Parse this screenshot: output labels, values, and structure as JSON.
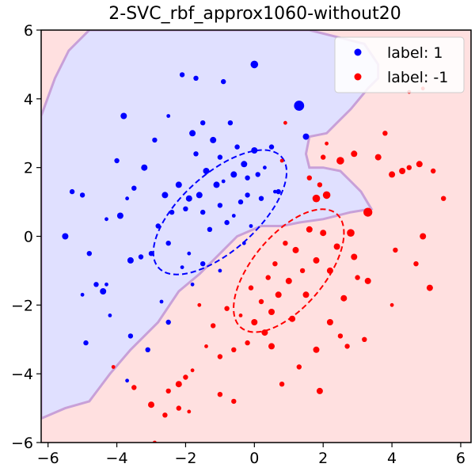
{
  "chart_data": {
    "type": "scatter",
    "title": "2-SVC_rbf_approx1060-without20",
    "xlabel": "",
    "ylabel": "",
    "xlim": [
      -6.2,
      6.3
    ],
    "ylim": [
      -6,
      6
    ],
    "x_ticks": [
      -6,
      -4,
      -2,
      0,
      2,
      4,
      6
    ],
    "y_ticks": [
      -6,
      -4,
      -2,
      0,
      2,
      4,
      6
    ],
    "grid": false,
    "legend_position": "top-right",
    "colors": {
      "positive": "#0000ff",
      "negative": "#ff0000",
      "region_positive": "#e0e0ff",
      "region_negative": "#ffe0e0",
      "boundary": "#c8a0d8"
    },
    "legend": [
      {
        "label": "label: 1",
        "color": "#0000ff"
      },
      {
        "label": "label: -1",
        "color": "#ff0000"
      }
    ],
    "decision_boundary": [
      [
        -6.2,
        -5.3
      ],
      [
        -5.5,
        -5.0
      ],
      [
        -4.8,
        -4.8
      ],
      [
        -4.2,
        -4.0
      ],
      [
        -3.6,
        -3.3
      ],
      [
        -2.8,
        -2.5
      ],
      [
        -2.2,
        -1.6
      ],
      [
        -1.6,
        -1.1
      ],
      [
        -1.0,
        -0.5
      ],
      [
        -0.5,
        0.0
      ],
      [
        0.2,
        0.3
      ],
      [
        0.8,
        0.3
      ],
      [
        1.3,
        0.4
      ],
      [
        2.0,
        0.5
      ],
      [
        2.8,
        0.7
      ],
      [
        3.4,
        0.8
      ],
      [
        3.1,
        1.3
      ],
      [
        2.8,
        1.6
      ],
      [
        2.5,
        1.9
      ],
      [
        2.0,
        2.0
      ],
      [
        1.6,
        2.0
      ],
      [
        1.5,
        2.4
      ],
      [
        1.6,
        2.9
      ],
      [
        2.1,
        3.0
      ],
      [
        2.4,
        3.3
      ],
      [
        2.8,
        3.7
      ],
      [
        3.3,
        4.3
      ],
      [
        3.6,
        4.6
      ],
      [
        3.6,
        5.0
      ],
      [
        3.2,
        5.6
      ],
      [
        2.4,
        5.8
      ],
      [
        1.6,
        6.0
      ],
      [
        -4.8,
        6.0
      ],
      [
        -5.4,
        5.4
      ],
      [
        -5.8,
        4.6
      ],
      [
        -6.2,
        3.5
      ]
    ],
    "ellipses": [
      {
        "series": "label: 1",
        "cx": -1.0,
        "cy": 0.7,
        "rx": 3.9,
        "ry": 1.8,
        "angle_deg": 42
      },
      {
        "series": "label: -1",
        "cx": 1.0,
        "cy": -1.0,
        "rx": 3.5,
        "ry": 1.7,
        "angle_deg": 50
      }
    ],
    "series": [
      {
        "name": "label: 1",
        "color": "#0000ff",
        "points": [
          [
            -5.5,
            0.0,
            5
          ],
          [
            -5.3,
            1.3,
            4
          ],
          [
            -5.0,
            1.2,
            4
          ],
          [
            -5.0,
            -1.7,
            3
          ],
          [
            -4.8,
            -0.5,
            4
          ],
          [
            -4.6,
            -1.4,
            4
          ],
          [
            -4.4,
            -1.6,
            5
          ],
          [
            -4.3,
            -1.4,
            3
          ],
          [
            -4.3,
            0.5,
            3
          ],
          [
            -4.0,
            2.2,
            4
          ],
          [
            -3.9,
            0.6,
            5
          ],
          [
            -3.8,
            3.5,
            5
          ],
          [
            -3.7,
            1.1,
            3
          ],
          [
            -3.6,
            -0.7,
            5
          ],
          [
            -3.5,
            1.4,
            4
          ],
          [
            -3.3,
            -0.6,
            4
          ],
          [
            -3.2,
            2.0,
            5
          ],
          [
            -3.0,
            -0.5,
            4
          ],
          [
            -2.9,
            2.8,
            4
          ],
          [
            -2.8,
            0.3,
            4
          ],
          [
            -2.6,
            1.2,
            5
          ],
          [
            -2.5,
            -0.2,
            4
          ],
          [
            -2.4,
            0.7,
            4
          ],
          [
            -2.2,
            1.5,
            5
          ],
          [
            -2.1,
            -0.9,
            3
          ],
          [
            -2.0,
            0.8,
            4
          ],
          [
            -1.9,
            1.1,
            5
          ],
          [
            -1.9,
            -0.5,
            3
          ],
          [
            -1.8,
            3.0,
            5
          ],
          [
            -1.7,
            2.4,
            4
          ],
          [
            -1.6,
            1.2,
            5
          ],
          [
            -1.5,
            0.7,
            4
          ],
          [
            -1.4,
            1.9,
            5
          ],
          [
            -1.3,
            0.2,
            4
          ],
          [
            -1.2,
            2.8,
            5
          ],
          [
            -1.1,
            1.5,
            5
          ],
          [
            -1.0,
            0.9,
            4
          ],
          [
            -1.0,
            2.3,
            4
          ],
          [
            -0.9,
            1.6,
            3
          ],
          [
            -0.8,
            0.4,
            4
          ],
          [
            -0.7,
            3.3,
            4
          ],
          [
            -0.6,
            1.8,
            5
          ],
          [
            -0.6,
            0.6,
            3
          ],
          [
            -0.5,
            2.6,
            4
          ],
          [
            -0.4,
            1.0,
            4
          ],
          [
            -0.3,
            2.1,
            5
          ],
          [
            -0.3,
            -0.2,
            3
          ],
          [
            -0.2,
            1.7,
            4
          ],
          [
            -0.1,
            0.3,
            3
          ],
          [
            0.0,
            2.5,
            5
          ],
          [
            0.1,
            1.8,
            4
          ],
          [
            0.2,
            1.1,
            4
          ],
          [
            0.3,
            2.0,
            3
          ],
          [
            0.5,
            2.6,
            4
          ],
          [
            0.6,
            1.3,
            3
          ],
          [
            -1.7,
            4.6,
            4
          ],
          [
            -2.1,
            4.7,
            4
          ],
          [
            -0.9,
            4.5,
            4
          ],
          [
            -2.5,
            3.5,
            3
          ],
          [
            -1.5,
            3.3,
            4
          ],
          [
            -3.6,
            -2.9,
            4
          ],
          [
            -3.1,
            -3.3,
            4
          ],
          [
            -2.5,
            -2.5,
            4
          ],
          [
            -2.7,
            -1.9,
            3
          ],
          [
            -1.8,
            -1.4,
            3
          ],
          [
            -1.5,
            -0.8,
            4
          ],
          [
            -4.2,
            -2.3,
            3
          ],
          [
            -4.9,
            -3.1,
            4
          ],
          [
            -3.7,
            -4.2,
            3
          ],
          [
            -1.0,
            -1.0,
            3
          ],
          [
            0.0,
            5.0,
            6
          ],
          [
            1.3,
            3.8,
            8
          ],
          [
            1.5,
            2.9,
            5
          ],
          [
            0.7,
            1.3,
            4
          ],
          [
            -0.2,
            1.2,
            4
          ]
        ]
      },
      {
        "name": "label: -1",
        "color": "#ff0000",
        "points": [
          [
            3.3,
            0.7,
            7
          ],
          [
            2.8,
            0.1,
            6
          ],
          [
            2.4,
            -0.3,
            5
          ],
          [
            2.0,
            0.1,
            5
          ],
          [
            1.8,
            -0.7,
            5
          ],
          [
            1.6,
            0.2,
            5
          ],
          [
            1.4,
            -1.0,
            4
          ],
          [
            1.2,
            -0.4,
            5
          ],
          [
            1.0,
            -1.3,
            5
          ],
          [
            0.9,
            -0.2,
            4
          ],
          [
            0.7,
            -1.7,
            5
          ],
          [
            0.6,
            -0.8,
            4
          ],
          [
            0.5,
            -2.2,
            5
          ],
          [
            0.4,
            -1.2,
            4
          ],
          [
            0.3,
            -2.8,
            5
          ],
          [
            0.2,
            -1.9,
            4
          ],
          [
            0.0,
            -2.5,
            5
          ],
          [
            -0.1,
            -1.5,
            4
          ],
          [
            -0.2,
            -3.1,
            4
          ],
          [
            -0.4,
            -2.3,
            3
          ],
          [
            -0.6,
            -3.3,
            4
          ],
          [
            -0.8,
            -2.1,
            4
          ],
          [
            -1.0,
            -3.5,
            4
          ],
          [
            -1.2,
            -2.6,
            4
          ],
          [
            -1.4,
            -3.2,
            3
          ],
          [
            -1.6,
            -2.0,
            3
          ],
          [
            -1.8,
            -3.9,
            3
          ],
          [
            -2.0,
            -4.1,
            4
          ],
          [
            -2.2,
            -4.3,
            5
          ],
          [
            -2.5,
            -4.5,
            4
          ],
          [
            -3.0,
            -4.9,
            5
          ],
          [
            -3.5,
            -4.4,
            4
          ],
          [
            -1.9,
            -5.1,
            3
          ],
          [
            -1.0,
            -4.6,
            4
          ],
          [
            0.8,
            -4.3,
            4
          ],
          [
            1.8,
            -3.3,
            5
          ],
          [
            2.2,
            -2.5,
            5
          ],
          [
            2.6,
            -1.8,
            5
          ],
          [
            3.0,
            -1.2,
            4
          ],
          [
            3.3,
            -1.3,
            5
          ],
          [
            2.9,
            2.4,
            5
          ],
          [
            3.6,
            2.3,
            5
          ],
          [
            4.0,
            1.8,
            5
          ],
          [
            4.3,
            1.9,
            5
          ],
          [
            4.5,
            2.0,
            4
          ],
          [
            4.8,
            2.1,
            5
          ],
          [
            5.2,
            1.9,
            4
          ],
          [
            5.5,
            1.1,
            4
          ],
          [
            4.9,
            0.0,
            5
          ],
          [
            4.1,
            -0.4,
            4
          ],
          [
            4.7,
            -0.8,
            4
          ],
          [
            5.1,
            -1.5,
            5
          ],
          [
            4.0,
            -2.0,
            3
          ],
          [
            3.2,
            -3.0,
            4
          ],
          [
            2.7,
            -3.2,
            4
          ],
          [
            3.8,
            3.0,
            4
          ],
          [
            4.5,
            4.2,
            3
          ],
          [
            4.9,
            4.3,
            3
          ],
          [
            2.5,
            2.2,
            6
          ],
          [
            2.1,
            1.2,
            6
          ],
          [
            1.8,
            1.1,
            6
          ],
          [
            2.0,
            2.3,
            4
          ],
          [
            -2.9,
            -6.0,
            3
          ],
          [
            -2.6,
            -5.2,
            4
          ],
          [
            -2.2,
            -5.0,
            4
          ],
          [
            -4.1,
            -3.8,
            3
          ],
          [
            -0.6,
            -4.8,
            4
          ],
          [
            1.3,
            -3.8,
            4
          ],
          [
            1.9,
            -4.5,
            5
          ],
          [
            2.5,
            -2.9,
            4
          ],
          [
            0.5,
            -3.2,
            5
          ],
          [
            1.1,
            -2.4,
            5
          ],
          [
            1.5,
            -1.7,
            5
          ],
          [
            2.9,
            -0.6,
            5
          ],
          [
            2.2,
            -1.0,
            5
          ],
          [
            1.6,
            1.7,
            4
          ],
          [
            0.8,
            2.2,
            3
          ],
          [
            0.9,
            3.3,
            3
          ],
          [
            2.1,
            2.7,
            3
          ],
          [
            1.9,
            1.5,
            4
          ]
        ]
      }
    ]
  }
}
